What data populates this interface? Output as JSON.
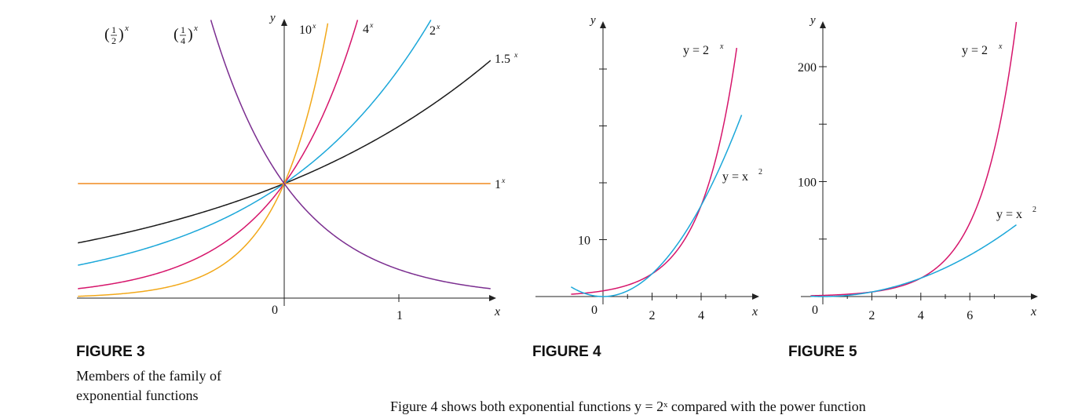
{
  "colors": {
    "black": "#1a1a1a",
    "blue": "#1ba7d9",
    "magenta": "#d6156b",
    "orange": "#f2a819",
    "green": "#8cc440",
    "purple": "#7b2e90",
    "const": "#f08a1f",
    "axis": "#222222"
  },
  "figures": [
    {
      "title": "FIGURE 3",
      "caption": "Members of the family of exponential functions"
    },
    {
      "title": "FIGURE 4",
      "caption": ""
    },
    {
      "title": "FIGURE 5",
      "caption": ""
    }
  ],
  "footer_fragment": "Figure 4 shows both exponential functions y = 2ˣ compared with the power function",
  "chart_data": [
    {
      "type": "line",
      "xlabel": "x",
      "ylabel": "y",
      "xlim": [
        -1.8,
        1.9
      ],
      "ylim": [
        0,
        2.4
      ],
      "xticks": [
        {
          "v": 0,
          "label": "0"
        },
        {
          "v": 1,
          "label": "1"
        }
      ],
      "series": [
        {
          "name": "1.5ˣ",
          "base": 1.5,
          "color": "black",
          "x_range": [
            -1.8,
            1.8
          ]
        },
        {
          "name": "2ˣ",
          "base": 2,
          "color": "blue",
          "x_range": [
            -1.8,
            1.29
          ]
        },
        {
          "name": "4ˣ",
          "base": 4,
          "color": "magenta",
          "x_range": [
            -1.8,
            0.64
          ]
        },
        {
          "name": "10ˣ",
          "base": 10,
          "color": "orange",
          "x_range": [
            -1.8,
            0.38
          ]
        },
        {
          "name": "1ˣ",
          "base": 1,
          "color": "const",
          "x_range": [
            -1.8,
            1.8
          ]
        },
        {
          "name": "(1/2)ˣ",
          "base": 0.5,
          "color": "green",
          "x_range": [
            -1.29,
            1.8
          ]
        },
        {
          "name": "(1/4)ˣ",
          "base": 0.25,
          "color": "purple",
          "x_range": [
            -0.64,
            1.8
          ]
        }
      ],
      "labels": {
        "b15": "1.5",
        "b2": "2",
        "b4": "4",
        "b10": "10",
        "b1": "1",
        "frac_num": "1",
        "frac_den_half": "2",
        "frac_den_quarter": "4",
        "sup": "x"
      }
    },
    {
      "type": "line",
      "xlabel": "x",
      "ylabel": "y",
      "xlim": [
        -1.3,
        6.3
      ],
      "ylim": [
        -1,
        56
      ],
      "xticks": [
        {
          "v": 0,
          "label": "0"
        },
        {
          "v": 2,
          "label": "2"
        },
        {
          "v": 4,
          "label": "4"
        }
      ],
      "yticks": [
        {
          "v": 10,
          "label": "10"
        }
      ],
      "series": [
        {
          "name": "y = 2ˣ",
          "fn": "2^x",
          "color": "magenta",
          "x_range": [
            -1.3,
            5.6
          ]
        },
        {
          "name": "y = x²",
          "fn": "x^2",
          "color": "blue",
          "x_range": [
            -1.3,
            5.6
          ]
        }
      ],
      "labels": {
        "exp": "y = 2",
        "sup": "x",
        "pow": "y = x",
        "sup2": "2"
      }
    },
    {
      "type": "line",
      "xlabel": "x",
      "ylabel": "y",
      "xlim": [
        -0.5,
        8.5
      ],
      "ylim": [
        0,
        245
      ],
      "xticks": [
        {
          "v": 0,
          "label": "0"
        },
        {
          "v": 2,
          "label": "2"
        },
        {
          "v": 4,
          "label": "4"
        },
        {
          "v": 6,
          "label": "6"
        }
      ],
      "yticks": [
        {
          "v": 100,
          "label": "100"
        },
        {
          "v": 200,
          "label": "200"
        }
      ],
      "series": [
        {
          "name": "y = 2ˣ",
          "fn": "2^x",
          "color": "magenta",
          "x_range": [
            -0.5,
            7.9
          ]
        },
        {
          "name": "y = x²",
          "fn": "x^2",
          "color": "blue",
          "x_range": [
            -0.5,
            7.9
          ]
        }
      ],
      "labels": {
        "exp": "y = 2",
        "sup": "x",
        "pow": "y = x",
        "sup2": "2"
      }
    }
  ]
}
